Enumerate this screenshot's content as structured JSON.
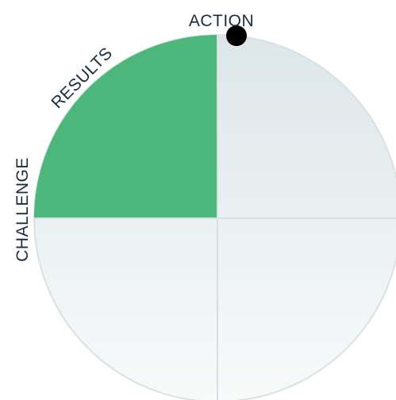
{
  "labels": {
    "action": "ACTION",
    "results": "RESULTS",
    "challenge": "CHALLENGE"
  }
}
